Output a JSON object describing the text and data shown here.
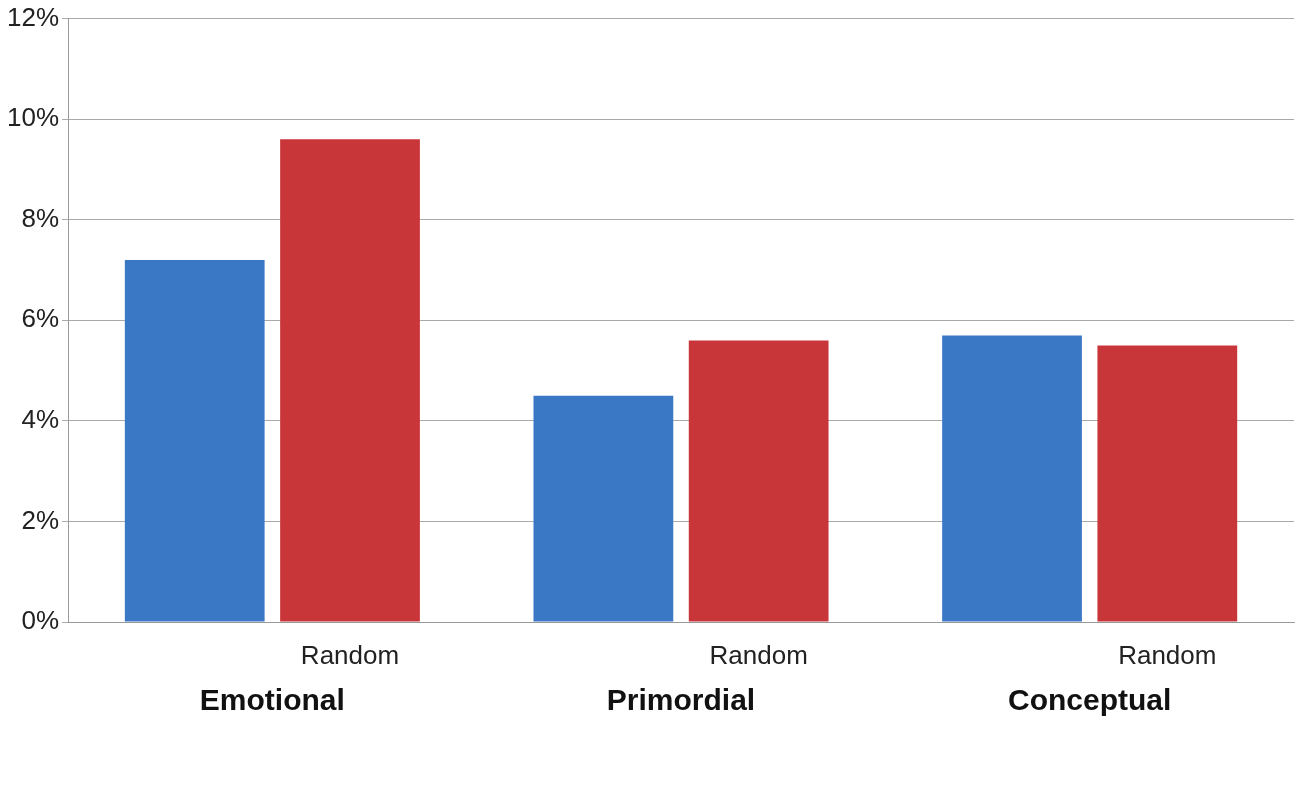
{
  "chart_data": {
    "type": "bar",
    "categories": [
      "Emotional",
      "Primordial",
      "Conceptual"
    ],
    "series": [
      {
        "color": "#3a78c6",
        "values": [
          7.2,
          4.5,
          5.7
        ]
      },
      {
        "name": "Random",
        "color": "#c9363a",
        "values": [
          9.6,
          5.6,
          5.5
        ]
      }
    ],
    "ylim": [
      0,
      12
    ],
    "yticks": [
      {
        "value": 0,
        "label": "0%"
      },
      {
        "value": 2,
        "label": "2%"
      },
      {
        "value": 4,
        "label": "4%"
      },
      {
        "value": 6,
        "label": "6%"
      },
      {
        "value": 8,
        "label": "8%"
      },
      {
        "value": 10,
        "label": "10%"
      },
      {
        "value": 12,
        "label": "12%"
      }
    ],
    "grid": "y",
    "legend": false
  }
}
